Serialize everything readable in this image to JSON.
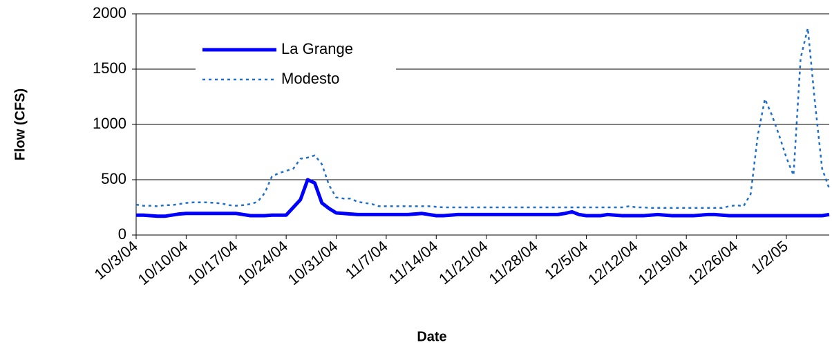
{
  "chart_data": {
    "type": "line",
    "x_label": "Date",
    "y_label": "Flow (CFS)",
    "categories": [
      "10/3/04",
      null,
      null,
      null,
      null,
      null,
      null,
      "10/10/04",
      null,
      null,
      null,
      null,
      null,
      null,
      "10/17/04",
      null,
      null,
      null,
      null,
      null,
      null,
      "10/24/04",
      null,
      null,
      null,
      null,
      null,
      null,
      "10/31/04",
      null,
      null,
      null,
      null,
      null,
      null,
      "11/7/04",
      null,
      null,
      null,
      null,
      null,
      null,
      "11/14/04",
      null,
      null,
      null,
      null,
      null,
      null,
      "11/21/04",
      null,
      null,
      null,
      null,
      null,
      null,
      "11/28/04",
      null,
      null,
      null,
      null,
      null,
      null,
      "12/5/04",
      null,
      null,
      null,
      null,
      null,
      null,
      "12/12/04",
      null,
      null,
      null,
      null,
      null,
      null,
      "12/19/04",
      null,
      null,
      null,
      null,
      null,
      null,
      "12/26/04",
      null,
      null,
      null,
      null,
      null,
      null,
      "1/2/05",
      null,
      null,
      null,
      null,
      null,
      null
    ],
    "series": [
      {
        "name": "La Grange",
        "color": "#0000ff",
        "style": "solid",
        "values": [
          180,
          180,
          175,
          170,
          170,
          180,
          190,
          195,
          195,
          195,
          195,
          195,
          195,
          195,
          195,
          185,
          175,
          175,
          175,
          180,
          180,
          180,
          250,
          320,
          500,
          470,
          290,
          240,
          200,
          195,
          190,
          185,
          185,
          185,
          185,
          185,
          185,
          185,
          185,
          190,
          195,
          185,
          175,
          175,
          180,
          185,
          185,
          185,
          185,
          185,
          185,
          185,
          185,
          185,
          185,
          185,
          185,
          185,
          185,
          185,
          195,
          210,
          185,
          175,
          175,
          175,
          185,
          180,
          175,
          175,
          175,
          175,
          180,
          185,
          180,
          175,
          175,
          175,
          175,
          180,
          185,
          185,
          180,
          175,
          175,
          175,
          175,
          175,
          175,
          175,
          175,
          175,
          175,
          175,
          175,
          175,
          175,
          185
        ]
      },
      {
        "name": "Modesto",
        "color": "#1f6fc8",
        "style": "dotted",
        "values": [
          275,
          265,
          265,
          260,
          270,
          270,
          280,
          290,
          295,
          295,
          295,
          290,
          285,
          270,
          265,
          270,
          280,
          300,
          380,
          530,
          560,
          580,
          600,
          690,
          700,
          720,
          640,
          450,
          340,
          330,
          330,
          300,
          290,
          280,
          260,
          260,
          260,
          260,
          260,
          260,
          260,
          260,
          255,
          250,
          250,
          250,
          250,
          250,
          250,
          250,
          250,
          250,
          250,
          250,
          250,
          250,
          250,
          250,
          250,
          250,
          250,
          250,
          250,
          250,
          250,
          250,
          250,
          250,
          250,
          260,
          250,
          250,
          245,
          245,
          245,
          245,
          245,
          245,
          245,
          245,
          245,
          245,
          245,
          260,
          270,
          260,
          370,
          900,
          1230,
          1080,
          900,
          700,
          540,
          1600,
          1870,
          1200,
          600,
          420
        ]
      }
    ],
    "ylim": [
      0,
      2000
    ],
    "yticks": [
      0,
      500,
      1000,
      1500,
      2000
    ],
    "grid": true,
    "legend": "top-left"
  }
}
